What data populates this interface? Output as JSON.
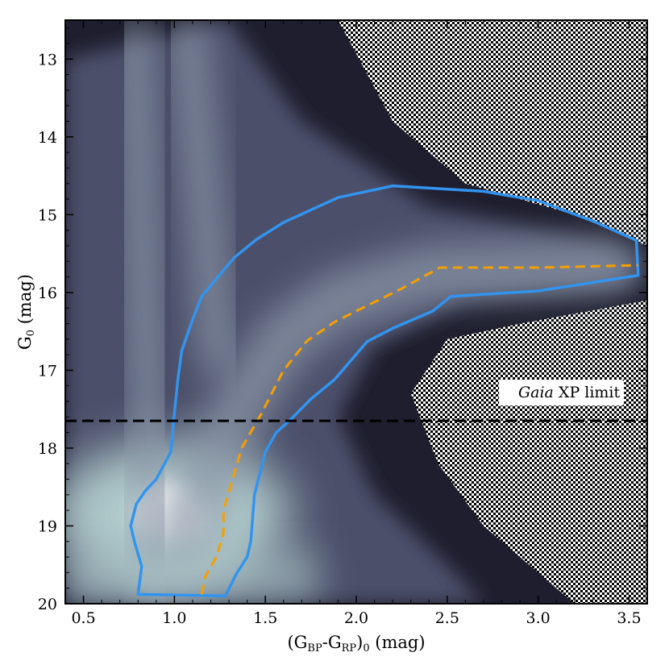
{
  "chart_data": {
    "type": "scatter",
    "subtype": "2D density histogram (color-magnitude diagram)",
    "xlabel_parts": [
      "(G",
      "BP",
      "-G",
      "RP",
      ")",
      "0",
      " (mag)"
    ],
    "ylabel_parts": [
      "G",
      "0",
      " (mag)"
    ],
    "xlim": [
      0.4,
      3.6
    ],
    "ylim": [
      20.0,
      12.5
    ],
    "y_inverted": true,
    "x_ticks": [
      {
        "value": 0.5,
        "label": "0.5"
      },
      {
        "value": 1.0,
        "label": "1.0"
      },
      {
        "value": 1.5,
        "label": "1.5"
      },
      {
        "value": 2.0,
        "label": "2.0"
      },
      {
        "value": 2.5,
        "label": "2.5"
      },
      {
        "value": 3.0,
        "label": "3.0"
      },
      {
        "value": 3.5,
        "label": "3.5"
      }
    ],
    "y_ticks": [
      {
        "value": 13,
        "label": "13"
      },
      {
        "value": 14,
        "label": "14"
      },
      {
        "value": 15,
        "label": "15"
      },
      {
        "value": 16,
        "label": "16"
      },
      {
        "value": 17,
        "label": "17"
      },
      {
        "value": 18,
        "label": "18"
      },
      {
        "value": 19,
        "label": "19"
      },
      {
        "value": 20,
        "label": "20"
      }
    ],
    "grid": false,
    "colormap": [
      "#ffffff",
      "#b9d6d4",
      "#8c98a8",
      "#4c4f6a",
      "#1e1e2e",
      "#000000"
    ],
    "density_features": [
      {
        "name": "main sequence turnoff peak",
        "x": 0.98,
        "y": 18.85
      },
      {
        "name": "blue vertical plume",
        "x": 0.78,
        "y_range": [
          12.5,
          19.9
        ]
      },
      {
        "name": "red vertical plume",
        "x": 1.07,
        "y_range": [
          12.5,
          17.0
        ]
      },
      {
        "name": "giant branch",
        "x_range": [
          0.9,
          3.55
        ],
        "y_range": [
          15.5,
          19.5
        ]
      }
    ],
    "selection_polygon": {
      "color": "#3294ee",
      "points": [
        [
          0.8,
          19.88
        ],
        [
          1.28,
          19.9
        ],
        [
          1.34,
          19.62
        ],
        [
          1.4,
          19.4
        ],
        [
          1.42,
          19.2
        ],
        [
          1.44,
          18.6
        ],
        [
          1.5,
          18.05
        ],
        [
          1.56,
          17.8
        ],
        [
          1.64,
          17.63
        ],
        [
          1.75,
          17.37
        ],
        [
          1.88,
          17.12
        ],
        [
          2.06,
          16.63
        ],
        [
          2.2,
          16.46
        ],
        [
          2.42,
          16.24
        ],
        [
          2.52,
          16.05
        ],
        [
          3.0,
          15.98
        ],
        [
          3.55,
          15.78
        ],
        [
          3.54,
          15.33
        ],
        [
          3.3,
          15.08
        ],
        [
          3.0,
          14.82
        ],
        [
          2.7,
          14.7
        ],
        [
          2.2,
          14.63
        ],
        [
          1.9,
          14.78
        ],
        [
          1.6,
          15.1
        ],
        [
          1.45,
          15.32
        ],
        [
          1.33,
          15.55
        ],
        [
          1.24,
          15.8
        ],
        [
          1.15,
          16.05
        ],
        [
          1.1,
          16.35
        ],
        [
          1.04,
          16.75
        ],
        [
          1.02,
          17.1
        ],
        [
          1.0,
          17.55
        ],
        [
          0.98,
          18.05
        ],
        [
          0.9,
          18.4
        ],
        [
          0.84,
          18.55
        ],
        [
          0.79,
          18.72
        ],
        [
          0.76,
          19.0
        ],
        [
          0.78,
          19.2
        ],
        [
          0.82,
          19.52
        ]
      ]
    },
    "ridge_line": {
      "color": "#f5a000",
      "style": "dashed",
      "points": [
        [
          1.15,
          19.88
        ],
        [
          1.17,
          19.65
        ],
        [
          1.23,
          19.4
        ],
        [
          1.27,
          19.1
        ],
        [
          1.27,
          18.8
        ],
        [
          1.32,
          18.4
        ],
        [
          1.37,
          18.0
        ],
        [
          1.48,
          17.55
        ],
        [
          1.6,
          17.0
        ],
        [
          1.73,
          16.62
        ],
        [
          1.88,
          16.38
        ],
        [
          2.05,
          16.18
        ],
        [
          2.25,
          15.95
        ],
        [
          2.46,
          15.68
        ],
        [
          3.0,
          15.68
        ],
        [
          3.55,
          15.65
        ]
      ]
    },
    "hline": {
      "y": 17.65,
      "color": "#000000",
      "style": "dashed",
      "label_italic": "Gaia",
      "label_rest": " XP limit",
      "label_x": 3.45,
      "label_y": 17.35
    }
  }
}
